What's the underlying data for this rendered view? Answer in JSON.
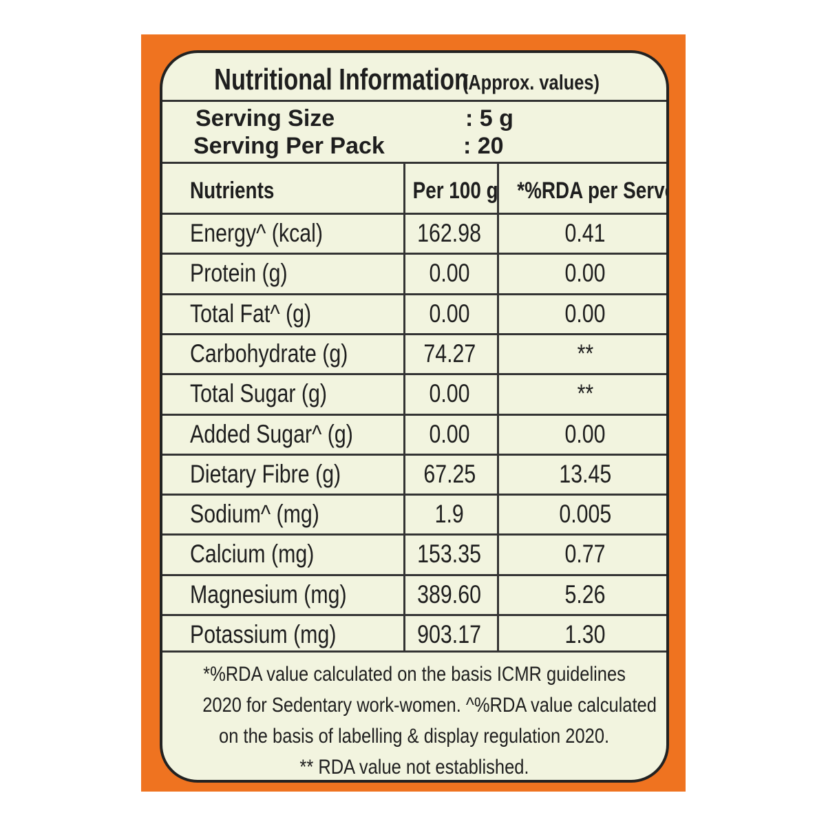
{
  "title": {
    "main": "Nutritional Information",
    "sub": "(Approx. values)"
  },
  "serving": [
    {
      "label": "Serving Size",
      "value": ": 5 g"
    },
    {
      "label": "Serving Per Pack",
      "value": ": 20"
    }
  ],
  "table": {
    "headers": [
      "Nutrients",
      "Per 100 g",
      "*%RDA per Serve"
    ],
    "rows": [
      {
        "nutrient": "Energy^ (kcal)",
        "per100g": "162.98",
        "rda": "0.41"
      },
      {
        "nutrient": "Protein (g)",
        "per100g": "0.00",
        "rda": "0.00"
      },
      {
        "nutrient": "Total Fat^ (g)",
        "per100g": "0.00",
        "rda": "0.00"
      },
      {
        "nutrient": "Carbohydrate (g)",
        "per100g": "74.27",
        "rda": "**"
      },
      {
        "nutrient": "Total Sugar (g)",
        "per100g": "0.00",
        "rda": "**"
      },
      {
        "nutrient": "Added Sugar^ (g)",
        "per100g": "0.00",
        "rda": "0.00"
      },
      {
        "nutrient": "Dietary Fibre (g)",
        "per100g": "67.25",
        "rda": "13.45"
      },
      {
        "nutrient": "Sodium^ (mg)",
        "per100g": "1.9",
        "rda": "0.005"
      },
      {
        "nutrient": "Calcium (mg)",
        "per100g": "153.35",
        "rda": "0.77"
      },
      {
        "nutrient": "Magnesium (mg)",
        "per100g": "389.60",
        "rda": "5.26"
      },
      {
        "nutrient": "Potassium (mg)",
        "per100g": "903.17",
        "rda": "1.30"
      }
    ]
  },
  "footnote": [
    "*%RDA value calculated on the basis ICMR guidelines",
    "2020 for Sedentary work-women. ^%RDA value calculated",
    "on the basis of labelling & display regulation 2020.",
    "** RDA value not established."
  ],
  "colors": {
    "border_orange": "#ef7320",
    "label_background": "#f2f4df",
    "text": "#1e1e1e"
  }
}
